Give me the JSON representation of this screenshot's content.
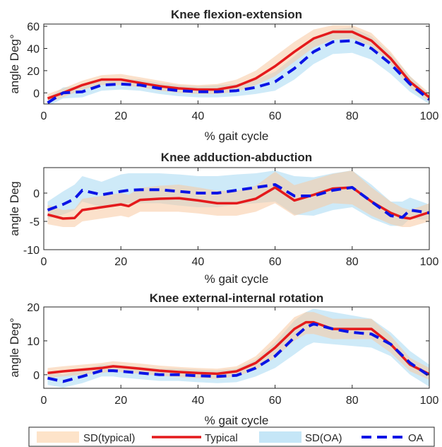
{
  "colors": {
    "typical": "#e41a1c",
    "sd_typical": "#fde3c9",
    "oa": "#0a14e6",
    "sd_oa": "#c5e6f7",
    "axis": "#262626"
  },
  "legend": {
    "placement": "bottom",
    "items": [
      {
        "label": "SD(typical)",
        "kind": "band",
        "color": "#fde3c9"
      },
      {
        "label": "Typical",
        "kind": "line",
        "color": "#e41a1c"
      },
      {
        "label": "SD(OA)",
        "kind": "band",
        "color": "#c5e6f7"
      },
      {
        "label": "OA",
        "kind": "dash",
        "color": "#0a14e6"
      }
    ]
  },
  "chart_data": [
    {
      "type": "line",
      "title": "Knee flexion-extension",
      "xlabel": "% gait cycle",
      "ylabel": "angle Deg°",
      "xlim": [
        0,
        100
      ],
      "ylim": [
        -10,
        62
      ],
      "xticks": [
        0,
        20,
        40,
        60,
        80,
        100
      ],
      "yticks": [
        0,
        20,
        40,
        60
      ],
      "x": [
        1,
        5,
        10,
        15,
        20,
        25,
        30,
        35,
        40,
        45,
        50,
        55,
        60,
        65,
        70,
        75,
        80,
        85,
        90,
        95,
        100
      ],
      "series": [
        {
          "name": "Typical",
          "values": [
            -5,
            0,
            7,
            12,
            12,
            9,
            6,
            4,
            3,
            3,
            6,
            13,
            24,
            37,
            49,
            55,
            55,
            47,
            31,
            10,
            -4
          ]
        },
        {
          "name": "SD(typical)",
          "band": true,
          "lower": [
            -9,
            -4,
            3,
            7,
            7,
            5,
            2,
            0,
            -1,
            -1,
            1,
            7,
            15,
            28,
            41,
            48,
            49,
            42,
            26,
            5,
            -8
          ],
          "upper": [
            -1,
            4,
            11,
            16,
            17,
            14,
            11,
            8,
            7,
            8,
            12,
            20,
            33,
            46,
            57,
            61,
            61,
            54,
            37,
            15,
            0
          ]
        },
        {
          "name": "OA",
          "values": [
            -9,
            0,
            1,
            7,
            8,
            7,
            4,
            2,
            1,
            1,
            2,
            5,
            10,
            22,
            37,
            46,
            47,
            40,
            26,
            8,
            -6
          ]
        },
        {
          "name": "SD(OA)",
          "band": true,
          "lower": [
            -12,
            -5,
            -4,
            2,
            3,
            2,
            -1,
            -3,
            -4,
            -4,
            -3,
            -1,
            2,
            12,
            26,
            35,
            36,
            30,
            17,
            1,
            -10
          ],
          "upper": [
            -5,
            5,
            6,
            13,
            13,
            12,
            9,
            7,
            6,
            7,
            8,
            12,
            19,
            33,
            48,
            57,
            59,
            51,
            35,
            15,
            -2
          ]
        }
      ]
    },
    {
      "type": "line",
      "title": "Knee adduction-abduction",
      "xlabel": "% gait cycle",
      "ylabel": "angle Deg",
      "xlim": [
        0,
        100
      ],
      "ylim": [
        -10,
        4.5
      ],
      "xticks": [
        0,
        20,
        40,
        60,
        80,
        100
      ],
      "yticks": [
        -10,
        -5,
        0
      ],
      "x": [
        1,
        5,
        8,
        10,
        15,
        20,
        22,
        25,
        30,
        35,
        40,
        45,
        50,
        55,
        60,
        65,
        70,
        75,
        80,
        85,
        90,
        93,
        95,
        100
      ],
      "series": [
        {
          "name": "Typical",
          "values": [
            -3.8,
            -4.5,
            -4.4,
            -3,
            -2.5,
            -2,
            -2.3,
            -1.2,
            -1,
            -0.9,
            -1.3,
            -1.8,
            -1.8,
            -1,
            1,
            -1.3,
            -0.3,
            0.8,
            1,
            -1.5,
            -3.5,
            -4.3,
            -4.5,
            -3.4
          ]
        },
        {
          "name": "SD(typical)",
          "band": true,
          "lower": [
            -5.5,
            -6,
            -6,
            -5,
            -4.5,
            -4,
            -4.3,
            -3.3,
            -3.3,
            -3.3,
            -3.6,
            -4,
            -4,
            -3.3,
            -1.8,
            -4,
            -3,
            -1.8,
            -2,
            -4,
            -5.5,
            -6,
            -6,
            -5
          ]
        },
        {
          "name": "OA",
          "values": [
            -3,
            -2,
            -1,
            0.5,
            -0.3,
            0.3,
            0.5,
            0.6,
            0.6,
            0.3,
            0,
            0,
            0.5,
            1,
            1.5,
            -0.5,
            -0.5,
            0.5,
            1,
            -1.5,
            -4,
            -4.3,
            -3,
            -3.5
          ]
        },
        {
          "name": "SD(OA)",
          "band": true,
          "lower": [
            -4.5,
            -3.8,
            -3,
            -1.5,
            -2.5,
            -2,
            -1.8,
            -1.8,
            -1.8,
            -2.2,
            -2.5,
            -2.5,
            -2,
            -1.8,
            -1.5,
            -3.8,
            -4,
            -3,
            -2.5,
            -4.5,
            -5.8,
            -5.8,
            -4.5,
            -4.8
          ],
          "upper": [
            -1.5,
            0.3,
            1.5,
            3,
            2,
            3.3,
            3.5,
            3.5,
            3.5,
            3.3,
            3,
            3,
            3.3,
            3.5,
            4,
            3,
            2.8,
            3.5,
            4,
            1.5,
            -1.5,
            -1.5,
            -0.8,
            -2
          ]
        }
      ]
    },
    {
      "type": "line",
      "title": "Knee external-internal rotation",
      "xlabel": "% gait cycle",
      "ylabel": "angle Deg°",
      "xlim": [
        0,
        100
      ],
      "ylim": [
        -4,
        20
      ],
      "xticks": [
        0,
        20,
        40,
        60,
        80,
        100
      ],
      "yticks": [
        0,
        10,
        20
      ],
      "x": [
        1,
        5,
        10,
        15,
        18,
        20,
        25,
        30,
        35,
        40,
        45,
        50,
        55,
        60,
        65,
        68,
        70,
        75,
        80,
        85,
        90,
        95,
        100
      ],
      "series": [
        {
          "name": "Typical",
          "values": [
            0.5,
            1,
            1.5,
            2,
            2.5,
            2.3,
            1.8,
            1.2,
            0.8,
            0.5,
            0.3,
            1,
            3.5,
            8,
            13.5,
            15.5,
            15.5,
            13.5,
            13.5,
            13.5,
            9,
            3,
            0.2
          ]
        },
        {
          "name": "SD(typical)",
          "band": true,
          "lower": [
            -1,
            -0.5,
            0,
            0.5,
            1,
            0.8,
            0.3,
            -0.3,
            -0.7,
            -1,
            -1.2,
            -0.5,
            1.5,
            5,
            10,
            12,
            12,
            10.5,
            10.5,
            10.5,
            6.5,
            1,
            -1.5
          ],
          "upper": [
            2,
            2.5,
            3,
            3.5,
            4,
            3.8,
            3.3,
            2.7,
            2.3,
            2,
            1.8,
            2.5,
            5.5,
            11,
            17,
            18.5,
            18.5,
            16.5,
            16.5,
            16.5,
            11.5,
            5,
            2
          ]
        },
        {
          "name": "OA",
          "values": [
            -1,
            -2,
            -0.5,
            1.2,
            1.2,
            1,
            0.5,
            0,
            0,
            -0.3,
            -0.5,
            -0.2,
            2,
            5.5,
            11,
            14,
            15,
            13.5,
            12.5,
            12,
            9,
            3.5,
            -0.3
          ]
        },
        {
          "name": "SD(OA)",
          "band": true,
          "lower": [
            -3,
            -3.8,
            -2.5,
            -0.5,
            -0.5,
            -0.8,
            -1.3,
            -1.8,
            -1.8,
            -2.2,
            -2.5,
            -2.2,
            -0.5,
            2,
            6,
            8.5,
            9.5,
            9,
            8.5,
            8,
            5.5,
            0,
            -3.5
          ],
          "upper": [
            1,
            0,
            1.5,
            3,
            3,
            2.8,
            2.3,
            1.8,
            1.8,
            1.5,
            1.3,
            1.8,
            4.5,
            9.5,
            16,
            18.5,
            19.5,
            18.5,
            17.5,
            16.5,
            12.5,
            7,
            3
          ]
        }
      ]
    }
  ]
}
